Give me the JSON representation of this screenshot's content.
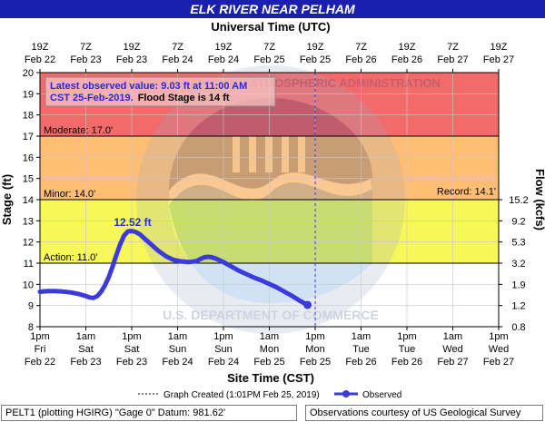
{
  "header": {
    "title": "ELK RIVER NEAR PELHAM"
  },
  "footer": {
    "left": "PELT1 (plotting HGIRG) \"Gage 0\" Datum: 981.62'",
    "right": "Observations courtesy of US Geological Survey"
  },
  "annotation": {
    "line1": "Latest observed value: 9.03 ft at 11:00 AM",
    "line2_a": "CST 25-Feb-2019.",
    "line2_b": "Flood Stage is 14 ft"
  },
  "peak_label": "12.52 ft",
  "colors": {
    "header": "#1a1fb0",
    "major": "#f26a6a",
    "moderate": "#ffbe73",
    "minor": "#f7f75a",
    "action": "#ffffff",
    "series": "#3b3bdc",
    "annotation_text": "#2a2ad0"
  },
  "chart_data": {
    "type": "line",
    "title": "ELK RIVER NEAR PELHAM",
    "top_axis_title": "Universal Time (UTC)",
    "xlabel": "Site Time (CST)",
    "ylabel": "Stage (ft)",
    "y2label": "Flow (kcfs)",
    "ylim": [
      8,
      20
    ],
    "yticks": [
      8,
      9,
      10,
      11,
      12,
      13,
      14,
      15,
      16,
      17,
      18,
      19,
      20
    ],
    "xlim": [
      "2019-02-22 13:00",
      "2019-02-27 13:00"
    ],
    "bottom_ticks": [
      {
        "t": "2019-02-22 13:00",
        "l1": "1pm",
        "l2": "Fri",
        "l3": "Feb 22"
      },
      {
        "t": "2019-02-23 01:00",
        "l1": "1am",
        "l2": "Sat",
        "l3": "Feb 23"
      },
      {
        "t": "2019-02-23 13:00",
        "l1": "1pm",
        "l2": "Sat",
        "l3": "Feb 23"
      },
      {
        "t": "2019-02-24 01:00",
        "l1": "1am",
        "l2": "Sun",
        "l3": "Feb 24"
      },
      {
        "t": "2019-02-24 13:00",
        "l1": "1pm",
        "l2": "Sun",
        "l3": "Feb 24"
      },
      {
        "t": "2019-02-25 01:00",
        "l1": "1am",
        "l2": "Mon",
        "l3": "Feb 25"
      },
      {
        "t": "2019-02-25 13:00",
        "l1": "1pm",
        "l2": "Mon",
        "l3": "Feb 25"
      },
      {
        "t": "2019-02-26 01:00",
        "l1": "1am",
        "l2": "Tue",
        "l3": "Feb 26"
      },
      {
        "t": "2019-02-26 13:00",
        "l1": "1pm",
        "l2": "Tue",
        "l3": "Feb 26"
      },
      {
        "t": "2019-02-27 01:00",
        "l1": "1am",
        "l2": "Wed",
        "l3": "Feb 27"
      },
      {
        "t": "2019-02-27 13:00",
        "l1": "1pm",
        "l2": "Wed",
        "l3": "Feb 27"
      }
    ],
    "top_ticks": [
      {
        "t": "2019-02-22 13:00",
        "l1": "19Z",
        "l2": "Feb 22"
      },
      {
        "t": "2019-02-23 01:00",
        "l1": "7Z",
        "l2": "Feb 23"
      },
      {
        "t": "2019-02-23 13:00",
        "l1": "19Z",
        "l2": "Feb 23"
      },
      {
        "t": "2019-02-24 01:00",
        "l1": "7Z",
        "l2": "Feb 24"
      },
      {
        "t": "2019-02-24 13:00",
        "l1": "19Z",
        "l2": "Feb 24"
      },
      {
        "t": "2019-02-25 01:00",
        "l1": "7Z",
        "l2": "Feb 25"
      },
      {
        "t": "2019-02-25 13:00",
        "l1": "19Z",
        "l2": "Feb 25"
      },
      {
        "t": "2019-02-26 01:00",
        "l1": "7Z",
        "l2": "Feb 26"
      },
      {
        "t": "2019-02-26 13:00",
        "l1": "19Z",
        "l2": "Feb 26"
      },
      {
        "t": "2019-02-27 01:00",
        "l1": "7Z",
        "l2": "Feb 27"
      },
      {
        "t": "2019-02-27 13:00",
        "l1": "19Z",
        "l2": "Feb 27"
      }
    ],
    "flow_ticks": [
      {
        "stage": 8,
        "label": "0.8"
      },
      {
        "stage": 9,
        "label": "1.2"
      },
      {
        "stage": 10,
        "label": "1.9"
      },
      {
        "stage": 11,
        "label": "3.2"
      },
      {
        "stage": 12,
        "label": "5.3"
      },
      {
        "stage": 13,
        "label": "9.2"
      },
      {
        "stage": 14,
        "label": "15.2"
      }
    ],
    "bands": [
      {
        "name": "major",
        "from": 17,
        "to": 20,
        "color": "#f26a6a"
      },
      {
        "name": "moderate",
        "from": 14,
        "to": 17,
        "color": "#ffbe73"
      },
      {
        "name": "minor",
        "from": 11,
        "to": 14,
        "color": "#f7f75a"
      },
      {
        "name": "action",
        "from": 8,
        "to": 11,
        "color": "#ffffff"
      }
    ],
    "thresholds": [
      {
        "name": "moderate",
        "value": 17.0,
        "label": "Moderate: 17.0'",
        "align": "left"
      },
      {
        "name": "minor",
        "value": 14.0,
        "label": "Minor: 14.0'",
        "align": "left"
      },
      {
        "name": "record",
        "value": 14.1,
        "label": "Record: 14.1'",
        "align": "right"
      },
      {
        "name": "action",
        "value": 11.0,
        "label": "Action: 11.0'",
        "align": "left"
      }
    ],
    "graph_created": {
      "t": "2019-02-25 13:01"
    },
    "legend": {
      "created": "Graph Created (1:01PM Feb 25, 2019)",
      "observed": "Observed",
      "position": "bottom"
    },
    "series": [
      {
        "name": "Observed",
        "color": "#3b3bdc",
        "points": [
          [
            "2019-02-22 13:00",
            9.65
          ],
          [
            "2019-02-22 15:00",
            9.68
          ],
          [
            "2019-02-22 17:00",
            9.68
          ],
          [
            "2019-02-22 19:00",
            9.66
          ],
          [
            "2019-02-22 21:00",
            9.62
          ],
          [
            "2019-02-22 23:00",
            9.55
          ],
          [
            "2019-02-23 01:00",
            9.45
          ],
          [
            "2019-02-23 02:00",
            9.38
          ],
          [
            "2019-02-23 03:00",
            9.36
          ],
          [
            "2019-02-23 04:00",
            9.45
          ],
          [
            "2019-02-23 05:00",
            9.65
          ],
          [
            "2019-02-23 06:00",
            9.95
          ],
          [
            "2019-02-23 07:00",
            10.35
          ],
          [
            "2019-02-23 08:00",
            10.85
          ],
          [
            "2019-02-23 09:00",
            11.4
          ],
          [
            "2019-02-23 10:00",
            11.9
          ],
          [
            "2019-02-23 11:00",
            12.3
          ],
          [
            "2019-02-23 12:00",
            12.5
          ],
          [
            "2019-02-23 13:00",
            12.52
          ],
          [
            "2019-02-23 14:00",
            12.48
          ],
          [
            "2019-02-23 15:00",
            12.38
          ],
          [
            "2019-02-23 16:00",
            12.22
          ],
          [
            "2019-02-23 18:00",
            11.9
          ],
          [
            "2019-02-23 20:00",
            11.58
          ],
          [
            "2019-02-23 22:00",
            11.32
          ],
          [
            "2019-02-24 00:00",
            11.15
          ],
          [
            "2019-02-24 02:00",
            11.08
          ],
          [
            "2019-02-24 04:00",
            11.05
          ],
          [
            "2019-02-24 06:00",
            11.1
          ],
          [
            "2019-02-24 07:00",
            11.2
          ],
          [
            "2019-02-24 08:00",
            11.28
          ],
          [
            "2019-02-24 09:00",
            11.3
          ],
          [
            "2019-02-24 10:00",
            11.28
          ],
          [
            "2019-02-24 11:00",
            11.22
          ],
          [
            "2019-02-24 13:00",
            11.05
          ],
          [
            "2019-02-24 15:00",
            10.85
          ],
          [
            "2019-02-24 17:00",
            10.65
          ],
          [
            "2019-02-24 19:00",
            10.48
          ],
          [
            "2019-02-24 21:00",
            10.32
          ],
          [
            "2019-02-24 23:00",
            10.18
          ],
          [
            "2019-02-25 01:00",
            10.02
          ],
          [
            "2019-02-25 03:00",
            9.85
          ],
          [
            "2019-02-25 05:00",
            9.65
          ],
          [
            "2019-02-25 07:00",
            9.45
          ],
          [
            "2019-02-25 09:00",
            9.22
          ],
          [
            "2019-02-25 11:00",
            9.03
          ]
        ]
      }
    ]
  }
}
